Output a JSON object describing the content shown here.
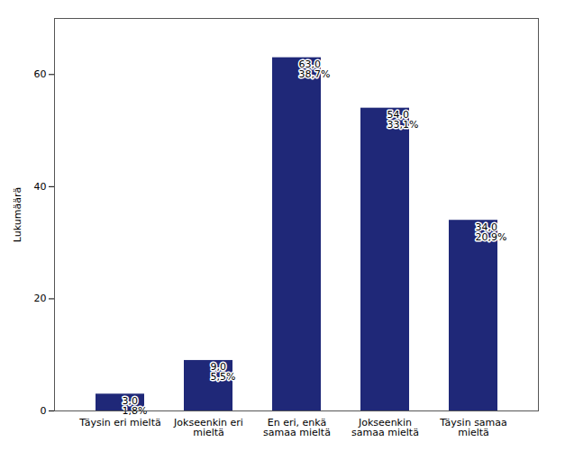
{
  "chart_data": {
    "type": "bar",
    "categories": [
      "Täysin eri mieltä",
      "Jokseenkin eri\nmieltä",
      "En eri, enkä\nsamaa mieltä",
      "Jokseenkin\nsamaa mieltä",
      "Täysin samaa\nmieltä"
    ],
    "values": [
      3,
      9,
      63,
      54,
      34
    ],
    "value_labels": [
      "3,0",
      "9,0",
      "63,0",
      "54,0",
      "34,0"
    ],
    "percentages": [
      1.8,
      5.5,
      38.7,
      33.1,
      20.9
    ],
    "percentage_labels": [
      "1,8%",
      "5,5%",
      "38,7%",
      "33,1%",
      "20,9%"
    ],
    "color": "#1F2878",
    "ylabel": "Lukumäärä",
    "ylim": [
      0,
      70
    ],
    "yticks": [
      0,
      20,
      40,
      60
    ],
    "grid": false,
    "data_labels": true
  }
}
